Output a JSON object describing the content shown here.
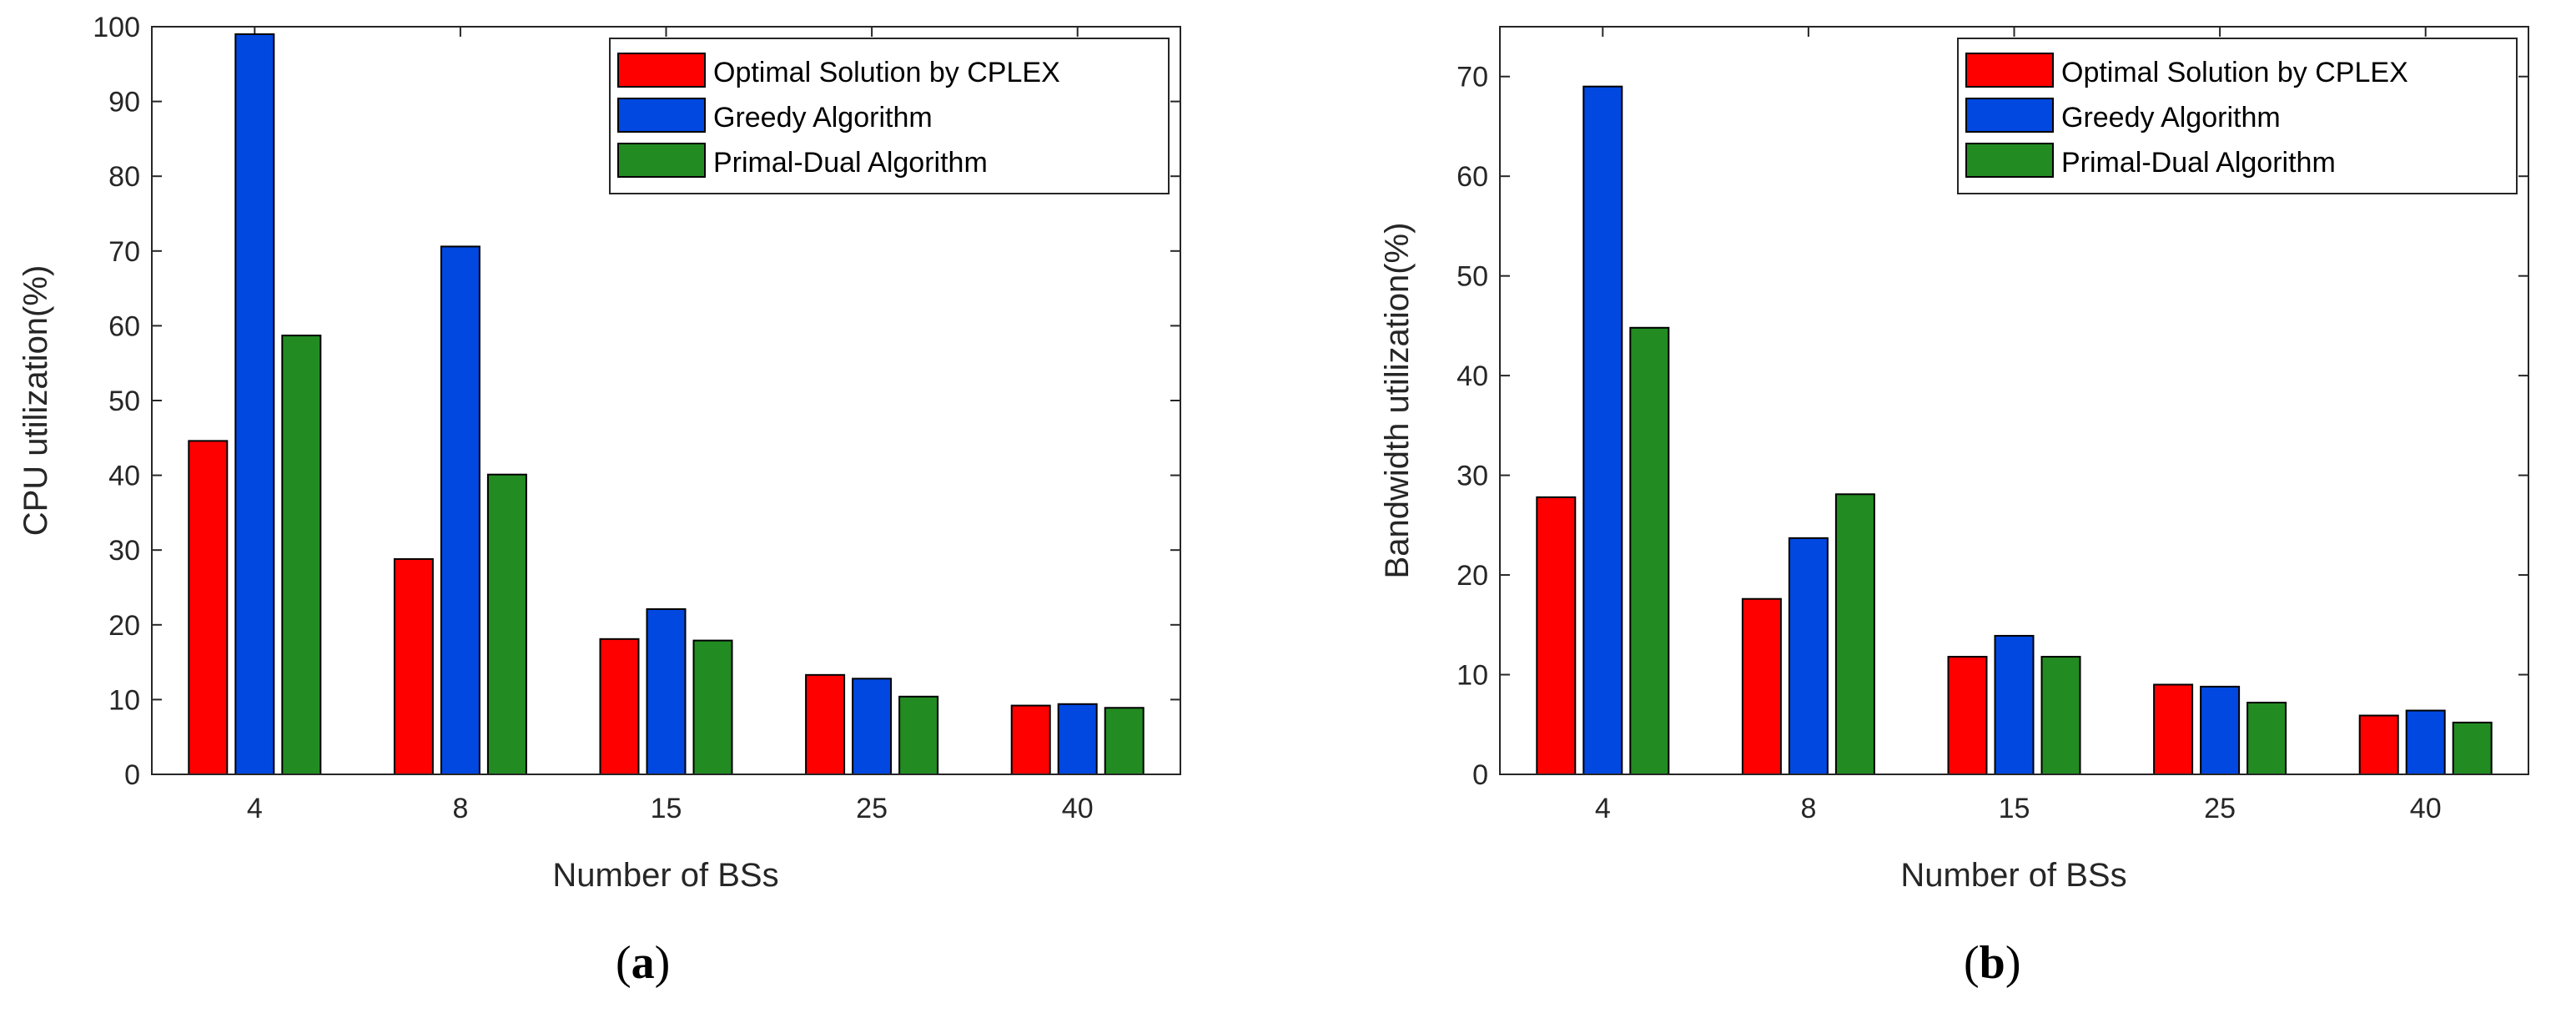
{
  "colors": {
    "cplex": "#ff0000",
    "greedy": "#0048e0",
    "primal_dual": "#228b22",
    "axis": "#262626"
  },
  "chart_data": [
    {
      "type": "bar",
      "panel": "a",
      "caption": "a",
      "xlabel": "Number of BSs",
      "ylabel": "CPU utilization(%)",
      "categories": [
        "4",
        "8",
        "15",
        "25",
        "40"
      ],
      "ylim": [
        0,
        100
      ],
      "yticks": [
        0,
        10,
        20,
        30,
        40,
        50,
        60,
        70,
        80,
        90,
        100
      ],
      "legend_position": "top-right",
      "series": [
        {
          "name": "Optimal Solution by CPLEX",
          "color_key": "cplex",
          "values": [
            44.6,
            28.8,
            18.1,
            13.3,
            9.2
          ]
        },
        {
          "name": "Greedy Algorithm",
          "color_key": "greedy",
          "values": [
            99.0,
            70.6,
            22.1,
            12.8,
            9.4
          ]
        },
        {
          "name": "Primal-Dual Algorithm",
          "color_key": "primal_dual",
          "values": [
            58.7,
            40.1,
            17.9,
            10.4,
            8.9
          ]
        }
      ]
    },
    {
      "type": "bar",
      "panel": "b",
      "caption": "b",
      "xlabel": "Number of BSs",
      "ylabel": "Bandwidth utilization(%)",
      "categories": [
        "4",
        "8",
        "15",
        "25",
        "40"
      ],
      "ylim": [
        0,
        75
      ],
      "yticks": [
        0,
        10,
        20,
        30,
        40,
        50,
        60,
        70
      ],
      "legend_position": "top-right",
      "series": [
        {
          "name": "Optimal Solution by CPLEX",
          "color_key": "cplex",
          "values": [
            27.8,
            17.6,
            11.8,
            9.0,
            5.9
          ]
        },
        {
          "name": "Greedy Algorithm",
          "color_key": "greedy",
          "values": [
            69.0,
            23.7,
            13.9,
            8.8,
            6.4
          ]
        },
        {
          "name": "Primal-Dual Algorithm",
          "color_key": "primal_dual",
          "values": [
            44.8,
            28.1,
            11.8,
            7.2,
            5.2
          ]
        }
      ]
    }
  ]
}
